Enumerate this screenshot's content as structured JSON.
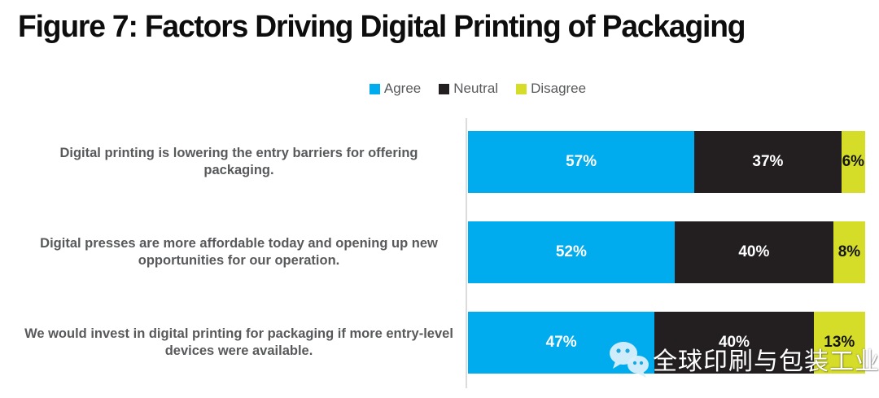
{
  "figure": {
    "title": "Figure 7: Factors Driving Digital Printing of Packaging"
  },
  "chart_data": {
    "type": "bar",
    "variant": "horizontal-stacked",
    "value_suffix": "%",
    "xlim": [
      0,
      100
    ],
    "legend_position": "top-center",
    "grid": false,
    "categories": [
      "Digital printing is lowering the entry barriers for offering packaging.",
      "Digital presses are more affordable today and opening up new opportunities for our operation.",
      "We would invest in digital printing for packaging if more entry-level devices were available."
    ],
    "series": [
      {
        "name": "Agree",
        "color": "#00ACEE",
        "label_color": "#FFFFFF",
        "values": [
          57,
          52,
          47
        ]
      },
      {
        "name": "Neutral",
        "color": "#231F20",
        "label_color": "#FFFFFF",
        "values": [
          37,
          40,
          40
        ]
      },
      {
        "name": "Disagree",
        "color": "#D5DD28",
        "label_color": "#141414",
        "values": [
          6,
          8,
          13
        ]
      }
    ]
  },
  "watermark": {
    "icon": "wechat-icon",
    "text_main": "全球印刷与包装",
    "text_underlined": "工业"
  },
  "colors": {
    "title": "#0D0D0D",
    "category_label": "#58595B",
    "legend_label": "#58595B",
    "axis_line": "#DCDCDC",
    "agree": "#00ACEE",
    "neutral": "#231F20",
    "disagree": "#D5DD28"
  }
}
